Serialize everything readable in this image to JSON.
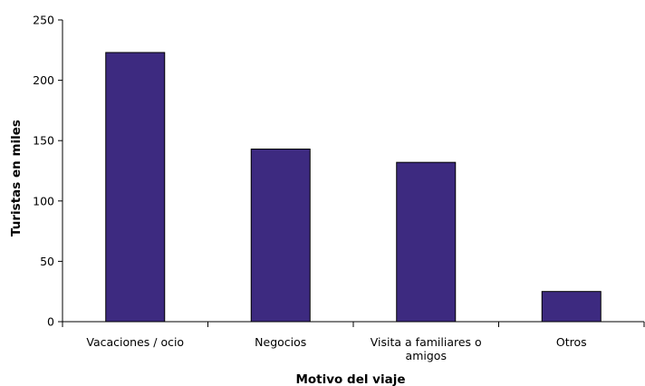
{
  "chart_data": {
    "type": "bar",
    "categories": [
      "Vacaciones / ocio",
      "Negocios",
      "Visita a familiares o amigos",
      "Otros"
    ],
    "category_lines": [
      [
        "Vacaciones / ocio"
      ],
      [
        "Negocios"
      ],
      [
        "Visita a familiares o",
        "amigos"
      ],
      [
        "Otros"
      ]
    ],
    "values": [
      223,
      143,
      132,
      25
    ],
    "xlabel": "Motivo del viaje",
    "ylabel": "Turistas en miles",
    "ylim": [
      0,
      250
    ],
    "yticks": [
      0,
      50,
      100,
      150,
      200,
      250
    ],
    "grid": false,
    "legend": "none",
    "bar_color": "#3d2a80",
    "bar_border_color": "#000000"
  }
}
